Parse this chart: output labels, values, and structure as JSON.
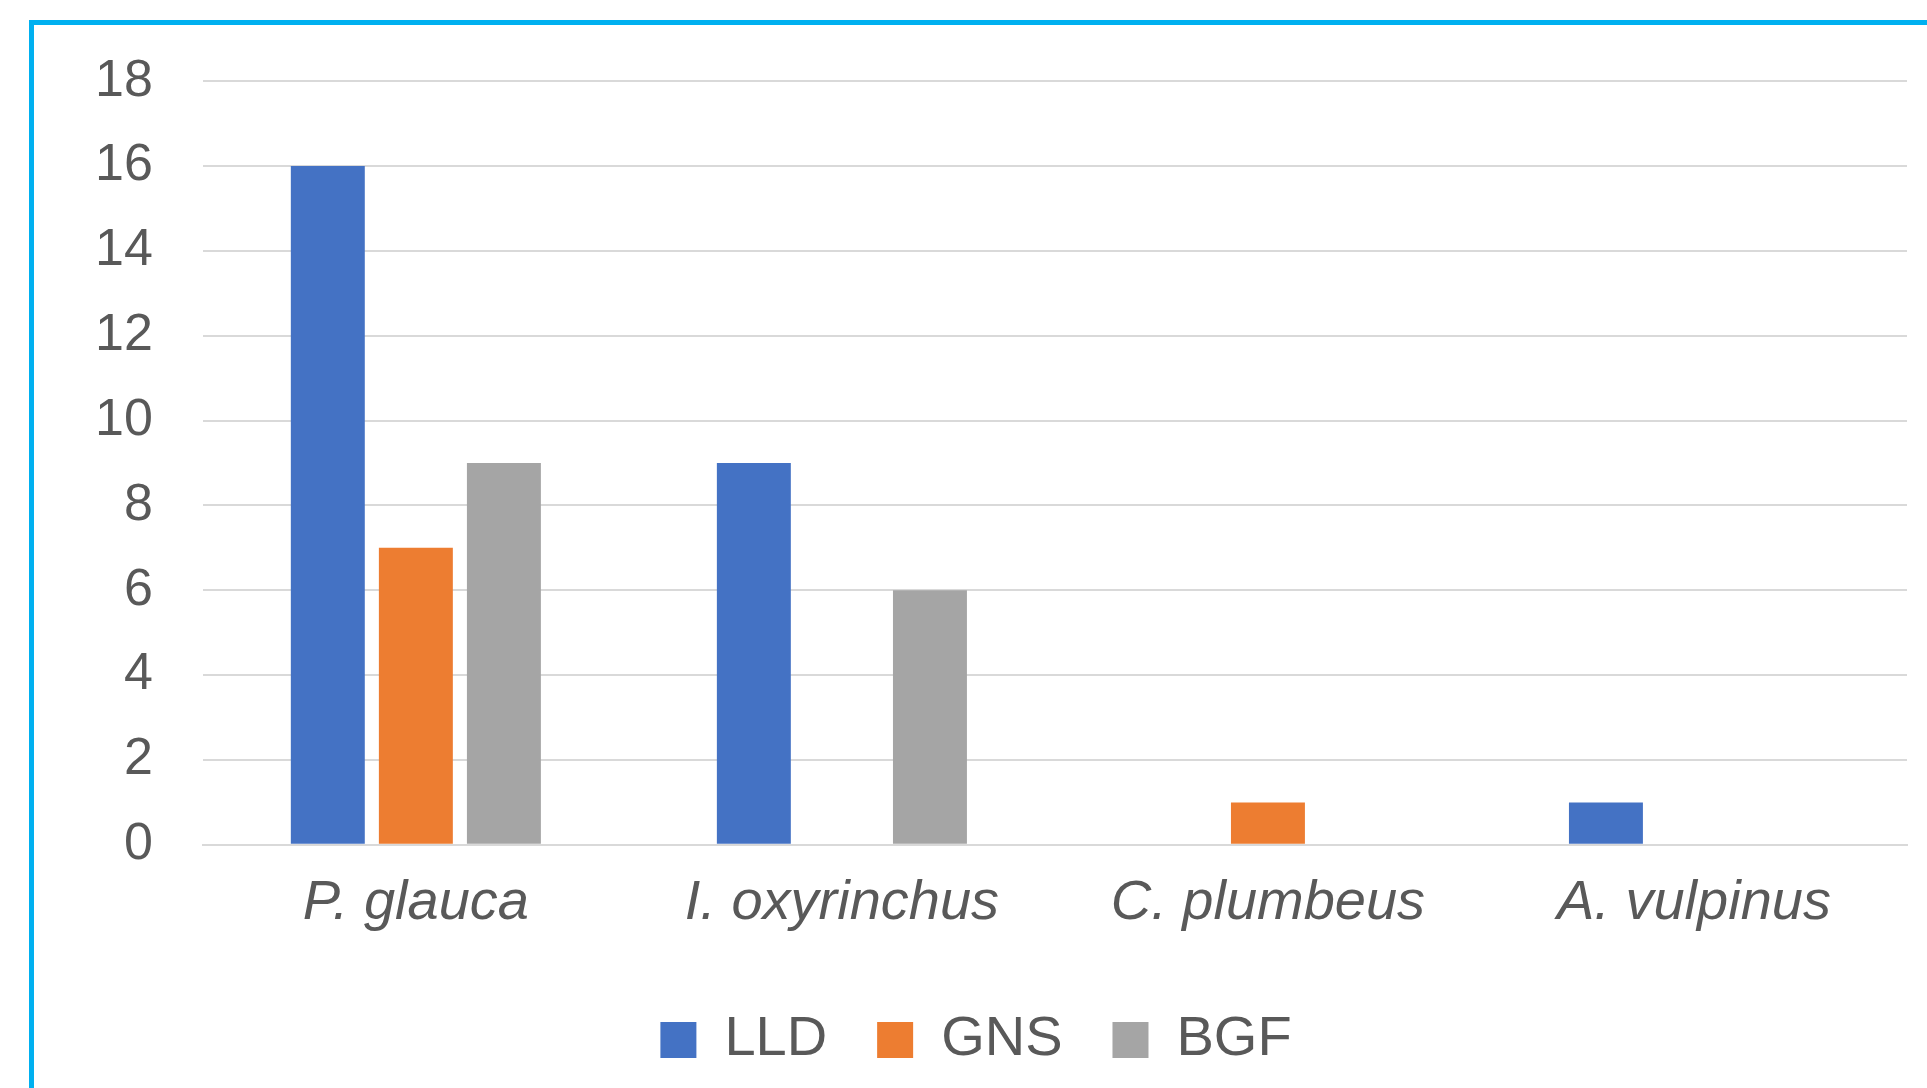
{
  "chart_data": {
    "type": "bar",
    "categories": [
      "P. glauca",
      "I. oxyrinchus",
      "C. plumbeus",
      "A. vulpinus"
    ],
    "series": [
      {
        "name": "LLD",
        "color": "#4472c4",
        "values": [
          16,
          9,
          0,
          1
        ]
      },
      {
        "name": "GNS",
        "color": "#ed7d31",
        "values": [
          7,
          0,
          1,
          0
        ]
      },
      {
        "name": "BGF",
        "color": "#a5a5a5",
        "values": [
          9,
          6,
          0,
          0
        ]
      }
    ],
    "ylim": [
      0,
      18
    ],
    "yticks": [
      0,
      2,
      4,
      6,
      8,
      10,
      12,
      14,
      16,
      18
    ],
    "grid": "y",
    "legend": "bottom"
  }
}
